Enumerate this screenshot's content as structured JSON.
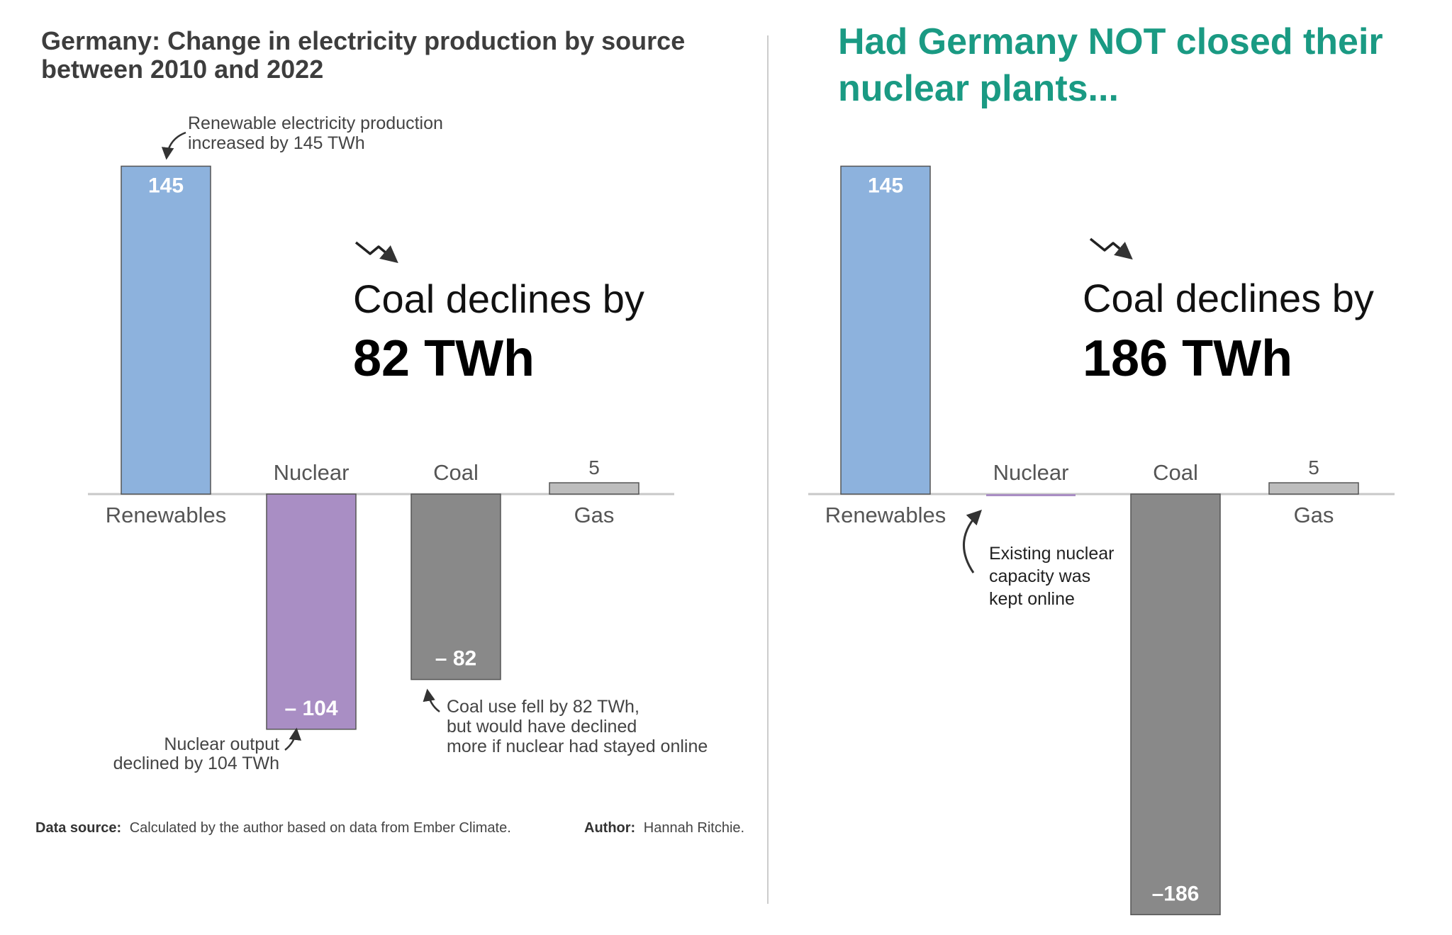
{
  "panels": [
    {
      "title_lines": [
        "Germany: Change in electricity production by source",
        "between 2010 and 2022"
      ],
      "callout": {
        "line1": "Coal declines by",
        "line2": "82 TWh"
      },
      "annotations": {
        "renewables": [
          "Renewable electricity production",
          "increased by 145 TWh"
        ],
        "nuclear": [
          "Nuclear output",
          "declined by 104 TWh"
        ],
        "coal": [
          "Coal use fell by 82 TWh,",
          "but would have declined",
          "more if nuclear had stayed online"
        ]
      },
      "footer": {
        "source_label": "Data source:",
        "source_text": "Calculated by the author based on data from Ember Climate.",
        "author_label": "Author:",
        "author_text": "Hannah Ritchie."
      },
      "value_labels": [
        "145",
        "– 104",
        "– 82",
        "5"
      ]
    },
    {
      "title_lines": [
        "Had Germany NOT closed their",
        "nuclear plants..."
      ],
      "callout": {
        "line1": "Coal declines by",
        "line2": "186 TWh"
      },
      "annotations": {
        "nuclear": [
          "Existing nuclear",
          "capacity was",
          "kept online"
        ]
      },
      "value_labels": [
        "145",
        "",
        "–186",
        "5"
      ]
    }
  ],
  "chart_data": [
    {
      "type": "bar",
      "title": "Germany: Change in electricity production by source between 2010 and 2022",
      "categories": [
        "Renewables",
        "Nuclear",
        "Coal",
        "Gas"
      ],
      "values": [
        145,
        -104,
        -82,
        5
      ],
      "unit": "TWh",
      "colors": [
        "#8db2dd",
        "#a98ec4",
        "#898989",
        "#bdbdbd"
      ],
      "grid": false,
      "legend": "none"
    },
    {
      "type": "bar",
      "title": "Had Germany NOT closed their nuclear plants...",
      "categories": [
        "Renewables",
        "Nuclear",
        "Coal",
        "Gas"
      ],
      "values": [
        145,
        0,
        -186,
        5
      ],
      "unit": "TWh",
      "colors": [
        "#8db2dd",
        "#a98ec4",
        "#898989",
        "#bdbdbd"
      ],
      "grid": false,
      "legend": "none"
    }
  ],
  "colors": {
    "accent": "#1a9a83",
    "title": "#3d3d3d",
    "baseline": "#c8c8c8",
    "divider": "#cccccc"
  },
  "icons": {
    "trend": "trend-down-icon",
    "pointer": "curved-arrow-icon"
  }
}
